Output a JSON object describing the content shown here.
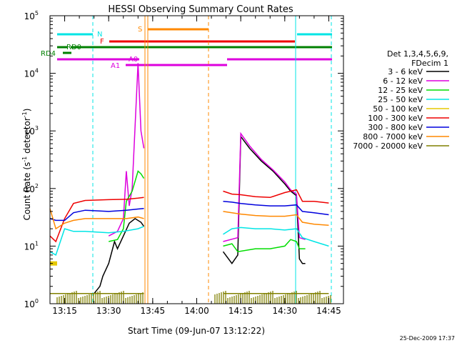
{
  "chart_data": {
    "type": "line",
    "title": "HESSI Observing Summary Count Rates",
    "xlabel": "Start Time (09-Jun-07 13:12:22)",
    "ylabel_main": "Count Rate (s",
    "ylabel_sup1": "-1",
    "ylabel_mid": " detector",
    "ylabel_sup2": "-1",
    "ylabel_end": ")",
    "yscale": "log",
    "xlim": [
      "13:10",
      "14:50"
    ],
    "ylim": [
      1,
      100000
    ],
    "x_ticks": [
      {
        "t": "13:15",
        "label": "13:15"
      },
      {
        "t": "13:30",
        "label": "13:30"
      },
      {
        "t": "13:45",
        "label": "13:45"
      },
      {
        "t": "14:00",
        "label": "14:00"
      },
      {
        "t": "14:15",
        "label": "14:15"
      },
      {
        "t": "14:30",
        "label": "14:30"
      },
      {
        "t": "14:45",
        "label": "14:45"
      }
    ],
    "y_ticks": [
      {
        "v": 1,
        "base": "10",
        "exp": "0"
      },
      {
        "v": 10,
        "base": "10",
        "exp": "1"
      },
      {
        "v": 100,
        "base": "10",
        "exp": "2"
      },
      {
        "v": 1000,
        "base": "10",
        "exp": "3"
      },
      {
        "v": 10000,
        "base": "10",
        "exp": "4"
      },
      {
        "v": 100000,
        "base": "10",
        "exp": "5"
      }
    ],
    "legend": {
      "position": "right",
      "header": [
        "Det 1,3,4,5,6,9,",
        "FDecim 1"
      ],
      "entries": [
        {
          "name": "3 - 6 keV",
          "color": "#000000"
        },
        {
          "name": "6 - 12 keV",
          "color": "#dd00dd"
        },
        {
          "name": "12 - 25 keV",
          "color": "#00dd00"
        },
        {
          "name": "25 - 50 keV",
          "color": "#00e5e5"
        },
        {
          "name": "50 - 100 keV",
          "color": "#e5c800"
        },
        {
          "name": "100 - 300 keV",
          "color": "#ee0000"
        },
        {
          "name": "300 - 800 keV",
          "color": "#0000dd"
        },
        {
          "name": "800 - 7000 keV",
          "color": "#ff8800"
        },
        {
          "name": "7000 - 20000 keV",
          "color": "#808000"
        }
      ]
    },
    "series": [
      {
        "name": "3 - 6 keV",
        "color": "#000000",
        "points": [
          [
            "13:25",
            1.5
          ],
          [
            "13:27",
            2
          ],
          [
            "13:28",
            3
          ],
          [
            "13:30",
            5
          ],
          [
            "13:32",
            12
          ],
          [
            "13:33",
            9
          ],
          [
            "13:35",
            15
          ],
          [
            "13:37",
            25
          ],
          [
            "13:39",
            30
          ],
          [
            "13:41",
            26
          ],
          [
            "13:42",
            22
          ]
        ],
        "points2": [
          [
            "14:09",
            8
          ],
          [
            "14:12",
            5
          ],
          [
            "14:14",
            7
          ],
          [
            "14:15",
            800
          ],
          [
            "14:18",
            500
          ],
          [
            "14:22",
            300
          ],
          [
            "14:26",
            200
          ],
          [
            "14:30",
            120
          ],
          [
            "14:32",
            90
          ],
          [
            "14:34",
            75
          ],
          [
            "14:35",
            6
          ],
          [
            "14:36",
            5
          ],
          [
            "14:37",
            5
          ]
        ]
      },
      {
        "name": "6 - 12 keV",
        "color": "#dd00dd",
        "points": [
          [
            "13:30",
            15
          ],
          [
            "13:33",
            18
          ],
          [
            "13:35",
            30
          ],
          [
            "13:36",
            200
          ],
          [
            "13:37",
            50
          ],
          [
            "13:38",
            100
          ],
          [
            "13:40",
            15000
          ],
          [
            "13:41",
            1000
          ],
          [
            "13:42",
            500
          ]
        ],
        "points2": [
          [
            "14:09",
            12
          ],
          [
            "14:14",
            14
          ],
          [
            "14:15",
            900
          ],
          [
            "14:18",
            550
          ],
          [
            "14:22",
            320
          ],
          [
            "14:26",
            210
          ],
          [
            "14:30",
            130
          ],
          [
            "14:32",
            95
          ],
          [
            "14:34",
            80
          ],
          [
            "14:35",
            14
          ],
          [
            "14:37",
            13
          ]
        ]
      },
      {
        "name": "12 - 25 keV",
        "color": "#00dd00",
        "points": [
          [
            "13:30",
            12
          ],
          [
            "13:33",
            13
          ],
          [
            "13:35",
            20
          ],
          [
            "13:36",
            60
          ],
          [
            "13:38",
            90
          ],
          [
            "13:40",
            200
          ],
          [
            "13:41",
            180
          ],
          [
            "13:42",
            150
          ]
        ],
        "points2": [
          [
            "14:09",
            10
          ],
          [
            "14:12",
            11
          ],
          [
            "14:14",
            8
          ],
          [
            "14:20",
            9
          ],
          [
            "14:25",
            9
          ],
          [
            "14:30",
            10
          ],
          [
            "14:32",
            13
          ],
          [
            "14:34",
            12
          ],
          [
            "14:35",
            9
          ],
          [
            "14:37",
            9
          ]
        ]
      },
      {
        "name": "25 - 50 keV",
        "color": "#00e5e5",
        "points": [
          [
            "13:10",
            8
          ],
          [
            "13:12",
            7
          ],
          [
            "13:15",
            20
          ],
          [
            "13:18",
            18
          ],
          [
            "13:22",
            18
          ],
          [
            "13:30",
            17
          ],
          [
            "13:35",
            18
          ],
          [
            "13:40",
            20
          ],
          [
            "13:42",
            22
          ]
        ],
        "points2": [
          [
            "14:09",
            16
          ],
          [
            "14:12",
            20
          ],
          [
            "14:15",
            21
          ],
          [
            "14:20",
            20
          ],
          [
            "14:25",
            20
          ],
          [
            "14:30",
            19
          ],
          [
            "14:34",
            20
          ],
          [
            "14:36",
            14
          ],
          [
            "14:40",
            12
          ],
          [
            "14:45",
            10
          ]
        ]
      },
      {
        "name": "50 - 100 keV",
        "color": "#e5c800",
        "points": [
          [
            "13:10",
            5
          ],
          [
            "13:12",
            5
          ]
        ],
        "points2": []
      },
      {
        "name": "100 - 300 keV",
        "color": "#ee0000",
        "points": [
          [
            "13:10",
            15
          ],
          [
            "13:12",
            12
          ],
          [
            "13:15",
            30
          ],
          [
            "13:18",
            55
          ],
          [
            "13:22",
            62
          ],
          [
            "13:30",
            64
          ],
          [
            "13:36",
            65
          ],
          [
            "13:40",
            68
          ],
          [
            "13:42",
            70
          ]
        ],
        "points2": [
          [
            "14:09",
            90
          ],
          [
            "14:12",
            80
          ],
          [
            "14:15",
            78
          ],
          [
            "14:20",
            72
          ],
          [
            "14:25",
            70
          ],
          [
            "14:30",
            85
          ],
          [
            "14:34",
            95
          ],
          [
            "14:36",
            60
          ],
          [
            "14:40",
            60
          ],
          [
            "14:45",
            56
          ]
        ]
      },
      {
        "name": "300 - 800 keV",
        "color": "#0000dd",
        "points": [
          [
            "13:10",
            30
          ],
          [
            "13:12",
            28
          ],
          [
            "13:15",
            28
          ],
          [
            "13:18",
            38
          ],
          [
            "13:22",
            42
          ],
          [
            "13:30",
            40
          ],
          [
            "13:36",
            42
          ],
          [
            "13:40",
            44
          ],
          [
            "13:42",
            45
          ]
        ],
        "points2": [
          [
            "14:09",
            60
          ],
          [
            "14:12",
            58
          ],
          [
            "14:15",
            55
          ],
          [
            "14:20",
            52
          ],
          [
            "14:25",
            50
          ],
          [
            "14:30",
            50
          ],
          [
            "14:34",
            52
          ],
          [
            "14:36",
            40
          ],
          [
            "14:40",
            38
          ],
          [
            "14:45",
            35
          ]
        ]
      },
      {
        "name": "800 - 7000 keV",
        "color": "#ff8800",
        "points": [
          [
            "13:10",
            45
          ],
          [
            "13:12",
            20
          ],
          [
            "13:15",
            25
          ],
          [
            "13:18",
            28
          ],
          [
            "13:22",
            30
          ],
          [
            "13:30",
            30
          ],
          [
            "13:36",
            30
          ],
          [
            "13:40",
            32
          ],
          [
            "13:42",
            30
          ]
        ],
        "points2": [
          [
            "14:09",
            40
          ],
          [
            "14:12",
            38
          ],
          [
            "14:15",
            36
          ],
          [
            "14:20",
            34
          ],
          [
            "14:25",
            33
          ],
          [
            "14:30",
            33
          ],
          [
            "14:34",
            35
          ],
          [
            "14:36",
            26
          ],
          [
            "14:40",
            24
          ],
          [
            "14:45",
            23
          ]
        ]
      },
      {
        "name": "7000 - 20000 keV",
        "color": "#808000",
        "points": [
          [
            "13:10",
            1.5
          ],
          [
            "13:42",
            1.5
          ]
        ],
        "points2": [
          [
            "14:09",
            1.5
          ],
          [
            "14:45",
            1.5
          ]
        ]
      }
    ],
    "annotations": [
      {
        "label": "N",
        "color": "#00e5e5"
      },
      {
        "label": "S",
        "color": "#ff8800"
      },
      {
        "label": "F",
        "color": "#ee0000"
      },
      {
        "label": "RD0",
        "color": "#008000"
      },
      {
        "label": "RD4",
        "color": "#008000"
      },
      {
        "label": "A0",
        "color": "#dd00dd"
      },
      {
        "label": "A1",
        "color": "#dd00dd"
      }
    ],
    "grid": false,
    "footer": "25-Dec-2009 17:37"
  }
}
